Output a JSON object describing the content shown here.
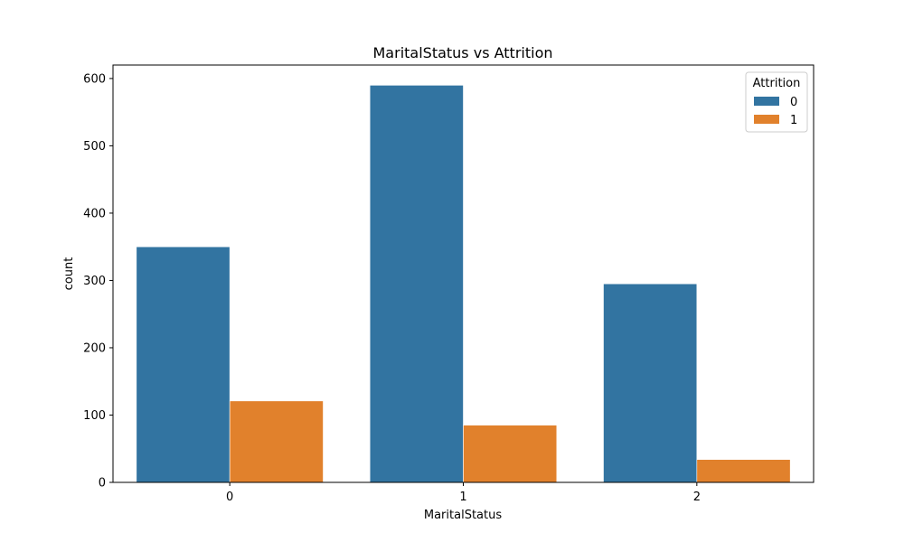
{
  "chart_data": {
    "type": "bar",
    "title": "MaritalStatus vs Attrition",
    "xlabel": "MaritalStatus",
    "ylabel": "count",
    "categories": [
      "0",
      "1",
      "2"
    ],
    "series": [
      {
        "name": "0",
        "color": "#3274a1",
        "values": [
          350,
          590,
          295
        ]
      },
      {
        "name": "1",
        "color": "#e1812c",
        "values": [
          121,
          85,
          34
        ]
      }
    ],
    "ylim": [
      0,
      620
    ],
    "yticks": [
      0,
      100,
      200,
      300,
      400,
      500,
      600
    ],
    "legend": {
      "title": "Attrition",
      "position": "top-right"
    },
    "grid": false
  }
}
